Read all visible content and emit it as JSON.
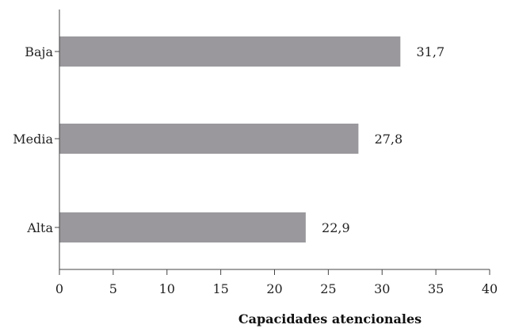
{
  "chart_data": {
    "type": "bar",
    "orientation": "horizontal",
    "categories": [
      "Baja",
      "Media",
      "Alta"
    ],
    "values": [
      31.7,
      27.8,
      22.9
    ],
    "value_labels": [
      "31,7",
      "27,8",
      "22,9"
    ],
    "xlabel": "Capacidades atencionales",
    "ylabel": "",
    "xlim": [
      0,
      40
    ],
    "xticks": [
      0,
      5,
      10,
      15,
      20,
      25,
      30,
      35,
      40
    ],
    "grid": false,
    "bar_color": "#9a989c",
    "axis_color": "#444444"
  }
}
